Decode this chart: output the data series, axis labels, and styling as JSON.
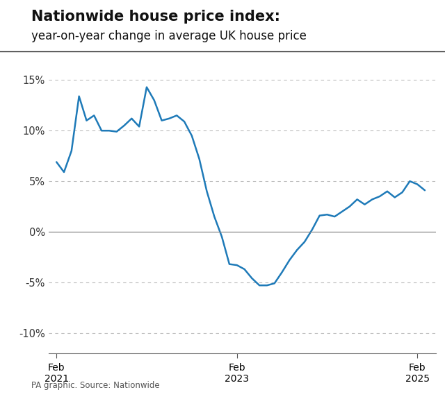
{
  "title_bold": "Nationwide house price index:",
  "title_sub": "year-on-year change in average UK house price",
  "source": "PA graphic. Source: Nationwide",
  "line_color": "#1e7ab8",
  "line_width": 1.8,
  "ylim": [
    -12,
    17
  ],
  "yticks": [
    -10,
    -5,
    0,
    5,
    10,
    15
  ],
  "background_color": "#ffffff",
  "grid_color": "#bbbbbb",
  "zero_line_color": "#888888",
  "x_tick_labels": [
    "Feb\n2021",
    "Feb\n2023",
    "Feb\n2025"
  ],
  "data": [
    [
      0,
      6.9
    ],
    [
      1,
      5.9
    ],
    [
      2,
      8.0
    ],
    [
      3,
      13.4
    ],
    [
      4,
      11.0
    ],
    [
      5,
      11.5
    ],
    [
      6,
      10.0
    ],
    [
      7,
      10.0
    ],
    [
      8,
      9.9
    ],
    [
      9,
      10.5
    ],
    [
      10,
      11.2
    ],
    [
      11,
      10.4
    ],
    [
      12,
      14.3
    ],
    [
      13,
      13.0
    ],
    [
      14,
      11.0
    ],
    [
      15,
      11.2
    ],
    [
      16,
      11.5
    ],
    [
      17,
      10.9
    ],
    [
      18,
      9.5
    ],
    [
      19,
      7.2
    ],
    [
      20,
      4.0
    ],
    [
      21,
      1.5
    ],
    [
      22,
      -0.5
    ],
    [
      23,
      -3.2
    ],
    [
      24,
      -3.3
    ],
    [
      25,
      -3.7
    ],
    [
      26,
      -4.6
    ],
    [
      27,
      -5.3
    ],
    [
      28,
      -5.3
    ],
    [
      29,
      -5.1
    ],
    [
      30,
      -4.0
    ],
    [
      31,
      -2.8
    ],
    [
      32,
      -1.8
    ],
    [
      33,
      -1.0
    ],
    [
      34,
      0.2
    ],
    [
      35,
      1.6
    ],
    [
      36,
      1.7
    ],
    [
      37,
      1.5
    ],
    [
      38,
      2.0
    ],
    [
      39,
      2.5
    ],
    [
      40,
      3.2
    ],
    [
      41,
      2.7
    ],
    [
      42,
      3.2
    ],
    [
      43,
      3.5
    ],
    [
      44,
      4.0
    ],
    [
      45,
      3.4
    ],
    [
      46,
      3.9
    ],
    [
      47,
      5.0
    ],
    [
      48,
      4.7
    ],
    [
      49,
      4.1
    ]
  ],
  "feb2021_idx": 0,
  "feb2023_idx": 24,
  "feb2025_idx": 48,
  "title_bold_fontsize": 15,
  "title_sub_fontsize": 12,
  "source_fontsize": 8.5,
  "ytick_fontsize": 10.5,
  "xtick_fontsize": 10.5
}
